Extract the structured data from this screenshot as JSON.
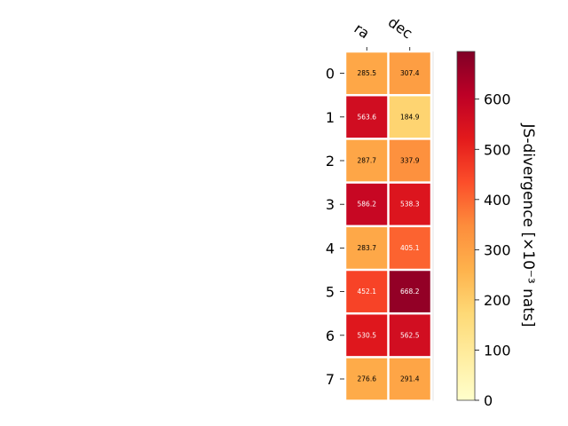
{
  "chart_data": {
    "type": "heatmap",
    "columns": [
      "ra",
      "dec"
    ],
    "rows": [
      "0",
      "1",
      "2",
      "3",
      "4",
      "5",
      "6",
      "7"
    ],
    "values": [
      [
        285.5,
        307.4
      ],
      [
        563.6,
        184.9
      ],
      [
        287.7,
        337.9
      ],
      [
        586.2,
        538.3
      ],
      [
        283.7,
        405.1
      ],
      [
        452.1,
        668.2
      ],
      [
        530.5,
        562.5
      ],
      [
        276.6,
        291.4
      ]
    ],
    "value_labels": [
      [
        "285.5",
        "307.4"
      ],
      [
        "563.6",
        "184.9"
      ],
      [
        "287.7",
        "337.9"
      ],
      [
        "586.2",
        "538.3"
      ],
      [
        "283.7",
        "405.1"
      ],
      [
        "452.1",
        "668.2"
      ],
      [
        "530.5",
        "562.5"
      ],
      [
        "276.6",
        "291.4"
      ]
    ],
    "colorbar": {
      "label": "JS-divergence [×10⁻³ nats]",
      "range": [
        0,
        695
      ],
      "ticks": [
        "0",
        "100",
        "200",
        "300",
        "400",
        "500",
        "600"
      ],
      "colormap": "YlOrRd"
    },
    "grid": false
  }
}
